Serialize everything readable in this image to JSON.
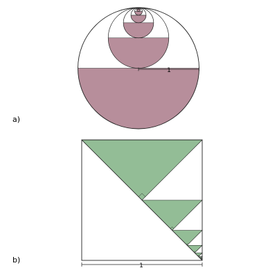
{
  "colors": {
    "circle_fill": "#b78e9b",
    "triangle_fill": "#93bd96",
    "stroke": "#222222",
    "background": "#ffffff"
  },
  "panel_a": {
    "label": "a)",
    "dimension_label": "1",
    "ratio": 0.5,
    "nested_circles": 9
  },
  "panel_b": {
    "label": "b)",
    "dimension_label": "1",
    "ratio": 0.5,
    "nested_triangles": 7
  }
}
